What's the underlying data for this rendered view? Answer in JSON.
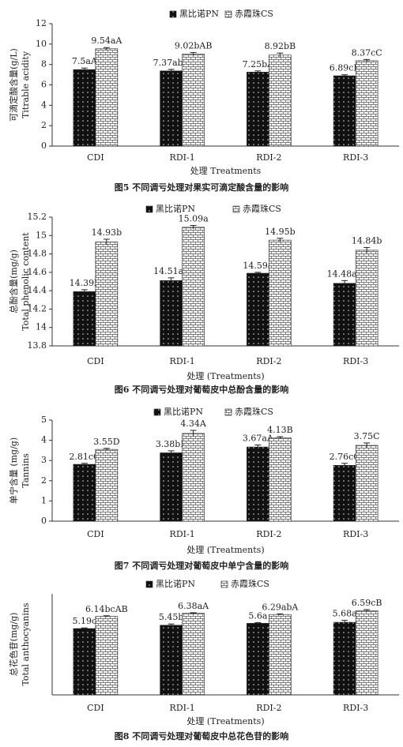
{
  "chart_data": [
    {
      "type": "bar",
      "caption": "图5  不同调亏处理对果实可滴定酸含量的影响",
      "ylabel": [
        "可滴定酸含量(g/L)",
        "Titrable acidity"
      ],
      "xlabel": "处理 Treatments",
      "categories": [
        "CDI",
        "RDI-1",
        "RDI-2",
        "RDI-3"
      ],
      "series": [
        {
          "name": "黑比诺PN",
          "color": "#111111",
          "values": [
            7.5,
            7.37,
            7.25,
            6.89
          ],
          "errors": [
            0.15,
            0.15,
            0.12,
            0.1
          ],
          "value_labels": [
            "7.5aA",
            "7.37abA",
            "7.25bA",
            "6.89cB"
          ]
        },
        {
          "name": "赤霞珠CS",
          "color": "#ffffff",
          "values": [
            9.54,
            9.02,
            8.92,
            8.37
          ],
          "errors": [
            0.12,
            0.15,
            0.2,
            0.12
          ],
          "value_labels": [
            "9.54aA",
            "9.02bAB",
            "8.92bB",
            "8.37cC"
          ]
        }
      ],
      "ylim": [
        0,
        12
      ],
      "yticks": [
        0,
        2,
        4,
        6,
        8,
        10,
        12
      ]
    },
    {
      "type": "bar",
      "caption": "图6  不同调亏处理对葡萄皮中总酚含量的影响",
      "ylabel": [
        "总酚含量(mg/g)",
        "Total phenolic content"
      ],
      "xlabel": "处理 (Treatments)",
      "categories": [
        "CDI",
        "RDI-1",
        "RDI-2",
        "RDI-3"
      ],
      "series": [
        {
          "name": "黑比诺PN",
          "color": "#111111",
          "values": [
            14.39,
            14.51,
            14.59,
            14.48
          ],
          "errors": [
            0.02,
            0.03,
            0.01,
            0.03
          ],
          "value_labels": [
            "14.39b",
            "14.51ab",
            "14.59a",
            "14.48ab"
          ]
        },
        {
          "name": "赤霞珠CS",
          "color": "#ffffff",
          "values": [
            14.93,
            15.09,
            14.95,
            14.84
          ],
          "errors": [
            0.03,
            0.02,
            0.02,
            0.03
          ],
          "value_labels": [
            "14.93b",
            "15.09a",
            "14.95b",
            "14.84b"
          ]
        }
      ],
      "ylim": [
        13.8,
        15.2
      ],
      "yticks": [
        13.8,
        14,
        14.2,
        14.4,
        14.6,
        14.8,
        15,
        15.2
      ]
    },
    {
      "type": "bar",
      "caption": "图7  不同调亏处理对葡萄皮中单宁含量的影响",
      "ylabel": [
        "单宁含量 (mg/g)",
        "Tannins"
      ],
      "xlabel": "处理 (Treatments)",
      "categories": [
        "CDI",
        "RDI-1",
        "RDI-2",
        "RDI-3"
      ],
      "series": [
        {
          "name": "黑比诺PN",
          "color": "#111111",
          "values": [
            2.81,
            3.38,
            3.67,
            2.76
          ],
          "errors": [
            0.05,
            0.1,
            0.1,
            0.1
          ],
          "value_labels": [
            "2.81cC",
            "3.38bB",
            "3.67aA",
            "2.76cC"
          ]
        },
        {
          "name": "赤霞珠CS",
          "color": "#ffffff",
          "values": [
            3.55,
            4.34,
            4.13,
            3.75
          ],
          "errors": [
            0.05,
            0.15,
            0.05,
            0.12
          ],
          "value_labels": [
            "3.55D",
            "4.34A",
            "4.13B",
            "3.75C"
          ]
        }
      ],
      "ylim": [
        0,
        5
      ],
      "yticks": [
        0,
        1,
        2,
        3,
        4,
        5
      ]
    },
    {
      "type": "bar",
      "caption": "图8  不同调亏处理对葡萄皮中总花色苷的影响",
      "ylabel": [
        "总花色苷(mg/g)",
        "Total anthocyanins"
      ],
      "xlabel": "处理 (Treatments)",
      "categories": [
        "CDI",
        "RDI-1",
        "RDI-2",
        "RDI-3"
      ],
      "series": [
        {
          "name": "黑比诺PN",
          "color": "#111111",
          "values": [
            5.19,
            5.45,
            5.6,
            5.68
          ],
          "errors": [
            0.05,
            0.1,
            0.05,
            0.15
          ],
          "value_labels": [
            "5.19c",
            "5.45b",
            "5.6a",
            "5.68a"
          ]
        },
        {
          "name": "赤霞珠CS",
          "color": "#ffffff",
          "values": [
            6.14,
            6.38,
            6.29,
            6.59
          ],
          "errors": [
            0.05,
            0.05,
            0.05,
            0.08
          ],
          "value_labels": [
            "6.14bcAB",
            "6.38aA",
            "6.29abA",
            "6.59cB"
          ]
        }
      ]
    }
  ]
}
